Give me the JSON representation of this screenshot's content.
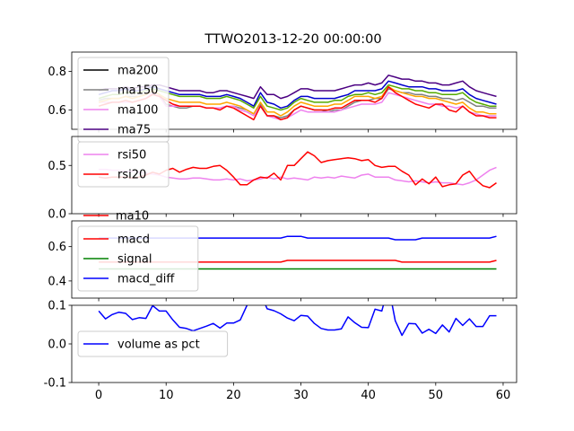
{
  "chart_data": {
    "type": "line",
    "title": "TTWO2013-12-20 00:00:00",
    "x_ticks": [
      0,
      10,
      20,
      30,
      40,
      50,
      60
    ],
    "xlim": [
      -4,
      62
    ],
    "panels": [
      {
        "id": "ma",
        "ylim": [
          0.5,
          0.9
        ],
        "y_ticks": [
          0.6,
          0.8
        ],
        "legend": {
          "placement": "upper-left"
        },
        "series": [
          {
            "name": "ma200",
            "color": "#000000",
            "in_legend": true,
            "values": []
          },
          {
            "name": "ma150",
            "color": "#808080",
            "in_legend": true,
            "values": [
              0.65,
              0.66,
              0.66,
              0.66,
              0.67,
              0.67,
              0.67,
              0.68,
              0.7,
              0.68,
              0.63,
              0.62,
              0.61,
              0.61,
              0.62,
              0.62,
              0.61,
              0.61,
              0.61,
              0.62,
              0.62,
              0.61,
              0.6,
              0.58,
              0.63,
              0.57,
              0.57,
              0.56,
              0.57,
              0.6,
              0.62,
              0.61,
              0.6,
              0.6,
              0.59,
              0.6,
              0.6,
              0.62,
              0.64,
              0.65,
              0.65,
              0.66,
              0.66,
              0.71,
              0.7,
              0.69,
              0.69,
              0.68,
              0.68,
              0.67,
              0.67,
              0.66,
              0.66,
              0.65,
              0.66,
              0.64,
              0.62,
              0.62,
              0.61,
              0.61
            ]
          },
          {
            "name": "ma100",
            "color": "#ee82ee",
            "in_legend": true,
            "values": [
              0.64,
              0.64,
              0.64,
              0.64,
              0.64,
              0.64,
              0.65,
              0.66,
              0.69,
              0.67,
              0.62,
              0.62,
              0.62,
              0.62,
              0.62,
              0.62,
              0.61,
              0.61,
              0.61,
              0.62,
              0.62,
              0.6,
              0.59,
              0.57,
              0.62,
              0.57,
              0.56,
              0.55,
              0.56,
              0.58,
              0.6,
              0.59,
              0.59,
              0.59,
              0.59,
              0.59,
              0.6,
              0.61,
              0.62,
              0.63,
              0.63,
              0.63,
              0.64,
              0.69,
              0.68,
              0.67,
              0.66,
              0.65,
              0.64,
              0.63,
              0.63,
              0.62,
              0.62,
              0.61,
              0.62,
              0.59,
              0.58,
              0.57,
              0.57,
              0.57
            ]
          },
          {
            "name": "ma75",
            "color": "#4b0082",
            "in_legend": true,
            "values": [
              0.7,
              0.71,
              0.71,
              0.71,
              0.72,
              0.71,
              0.72,
              0.72,
              0.73,
              0.73,
              0.72,
              0.71,
              0.7,
              0.7,
              0.7,
              0.7,
              0.69,
              0.69,
              0.7,
              0.7,
              0.69,
              0.68,
              0.67,
              0.66,
              0.72,
              0.68,
              0.68,
              0.66,
              0.67,
              0.69,
              0.71,
              0.71,
              0.7,
              0.7,
              0.7,
              0.7,
              0.71,
              0.72,
              0.73,
              0.73,
              0.74,
              0.73,
              0.74,
              0.78,
              0.77,
              0.76,
              0.76,
              0.75,
              0.75,
              0.74,
              0.74,
              0.73,
              0.73,
              0.74,
              0.75,
              0.72,
              0.7,
              0.69,
              0.68,
              0.67
            ]
          },
          {
            "name": "",
            "color": "#0000cd",
            "in_legend": false,
            "values": [
              0.68,
              0.69,
              0.7,
              0.7,
              0.71,
              0.7,
              0.7,
              0.71,
              0.72,
              0.71,
              0.7,
              0.69,
              0.68,
              0.68,
              0.68,
              0.68,
              0.67,
              0.67,
              0.67,
              0.68,
              0.67,
              0.66,
              0.64,
              0.62,
              0.69,
              0.64,
              0.63,
              0.61,
              0.62,
              0.65,
              0.67,
              0.67,
              0.66,
              0.66,
              0.66,
              0.66,
              0.67,
              0.68,
              0.7,
              0.7,
              0.7,
              0.7,
              0.71,
              0.75,
              0.74,
              0.73,
              0.72,
              0.72,
              0.72,
              0.71,
              0.71,
              0.7,
              0.7,
              0.7,
              0.71,
              0.68,
              0.66,
              0.65,
              0.64,
              0.63
            ]
          },
          {
            "name": "",
            "color": "#55aa00",
            "in_legend": false,
            "values": [
              0.66,
              0.67,
              0.68,
              0.68,
              0.69,
              0.69,
              0.69,
              0.7,
              0.71,
              0.7,
              0.69,
              0.68,
              0.67,
              0.67,
              0.67,
              0.67,
              0.66,
              0.66,
              0.66,
              0.67,
              0.66,
              0.65,
              0.63,
              0.61,
              0.67,
              0.62,
              0.61,
              0.6,
              0.61,
              0.64,
              0.66,
              0.65,
              0.64,
              0.64,
              0.64,
              0.65,
              0.65,
              0.67,
              0.68,
              0.68,
              0.69,
              0.68,
              0.69,
              0.73,
              0.72,
              0.71,
              0.71,
              0.7,
              0.7,
              0.69,
              0.69,
              0.68,
              0.68,
              0.68,
              0.69,
              0.66,
              0.64,
              0.63,
              0.62,
              0.62
            ]
          },
          {
            "name": "",
            "color": "#ffa500",
            "in_legend": false,
            "values": [
              0.64,
              0.65,
              0.66,
              0.66,
              0.67,
              0.66,
              0.67,
              0.68,
              0.7,
              0.68,
              0.66,
              0.65,
              0.64,
              0.64,
              0.64,
              0.64,
              0.63,
              0.63,
              0.63,
              0.64,
              0.63,
              0.62,
              0.6,
              0.58,
              0.64,
              0.59,
              0.59,
              0.57,
              0.59,
              0.62,
              0.64,
              0.63,
              0.62,
              0.62,
              0.62,
              0.63,
              0.63,
              0.65,
              0.67,
              0.67,
              0.67,
              0.66,
              0.67,
              0.72,
              0.7,
              0.69,
              0.68,
              0.67,
              0.67,
              0.66,
              0.66,
              0.65,
              0.64,
              0.63,
              0.64,
              0.61,
              0.59,
              0.59,
              0.58,
              0.58
            ]
          },
          {
            "name": "",
            "color": "#ff0000",
            "in_legend": false,
            "values": [
              0.62,
              0.63,
              0.64,
              0.64,
              0.65,
              0.64,
              0.65,
              0.66,
              0.68,
              0.67,
              0.65,
              0.63,
              0.62,
              0.62,
              0.62,
              0.62,
              0.61,
              0.61,
              0.6,
              0.62,
              0.61,
              0.59,
              0.57,
              0.55,
              0.62,
              0.57,
              0.57,
              0.55,
              0.56,
              0.6,
              0.62,
              0.61,
              0.6,
              0.6,
              0.6,
              0.61,
              0.61,
              0.63,
              0.65,
              0.65,
              0.65,
              0.64,
              0.66,
              0.72,
              0.69,
              0.67,
              0.65,
              0.63,
              0.62,
              0.61,
              0.63,
              0.63,
              0.6,
              0.59,
              0.62,
              0.59,
              0.57,
              0.57,
              0.56,
              0.56
            ]
          }
        ]
      },
      {
        "id": "rsi",
        "ylim": [
          0,
          0.8
        ],
        "y_ticks": [
          0.0,
          0.5
        ],
        "legend": {
          "placement": "upper-left"
        },
        "series": [
          {
            "name": "rsi50",
            "color": "#ee82ee",
            "in_legend": true,
            "values": [
              0.46,
              0.46,
              0.45,
              0.45,
              0.44,
              0.44,
              0.43,
              0.42,
              0.41,
              0.4,
              0.38,
              0.37,
              0.36,
              0.36,
              0.37,
              0.37,
              0.36,
              0.35,
              0.35,
              0.36,
              0.35,
              0.36,
              0.34,
              0.35,
              0.36,
              0.38,
              0.36,
              0.38,
              0.36,
              0.37,
              0.36,
              0.35,
              0.38,
              0.37,
              0.38,
              0.37,
              0.39,
              0.38,
              0.37,
              0.4,
              0.41,
              0.38,
              0.38,
              0.38,
              0.35,
              0.34,
              0.33,
              0.34,
              0.33,
              0.32,
              0.33,
              0.32,
              0.32,
              0.31,
              0.3,
              0.32,
              0.35,
              0.4,
              0.45,
              0.48
            ]
          },
          {
            "name": "rsi20",
            "color": "#ff0000",
            "in_legend": true,
            "values": [
              0.38,
              0.37,
              0.38,
              0.38,
              0.38,
              0.37,
              0.38,
              0.4,
              0.43,
              0.41,
              0.45,
              0.47,
              0.43,
              0.46,
              0.48,
              0.47,
              0.47,
              0.49,
              0.5,
              0.45,
              0.38,
              0.3,
              0.3,
              0.35,
              0.38,
              0.37,
              0.42,
              0.35,
              0.5,
              0.5,
              0.57,
              0.64,
              0.6,
              0.53,
              0.55,
              0.56,
              0.57,
              0.58,
              0.57,
              0.55,
              0.56,
              0.5,
              0.48,
              0.49,
              0.49,
              0.44,
              0.4,
              0.3,
              0.36,
              0.31,
              0.38,
              0.28,
              0.3,
              0.31,
              0.4,
              0.44,
              0.35,
              0.29,
              0.27,
              0.32
            ]
          }
        ]
      },
      {
        "id": "macd",
        "ylim": [
          0.3,
          0.75
        ],
        "y_ticks": [
          0.4,
          0.6
        ],
        "legend": {
          "placement": "upper-left"
        },
        "legend_partial_label": "ma10",
        "series": [
          {
            "name": "macd",
            "color": "#ff0000",
            "in_legend": true,
            "values": [
              0.51,
              0.51,
              0.51,
              0.51,
              0.51,
              0.51,
              0.51,
              0.51,
              0.51,
              0.51,
              0.51,
              0.51,
              0.51,
              0.51,
              0.51,
              0.51,
              0.51,
              0.51,
              0.51,
              0.51,
              0.51,
              0.51,
              0.51,
              0.51,
              0.51,
              0.51,
              0.51,
              0.51,
              0.52,
              0.52,
              0.52,
              0.52,
              0.52,
              0.52,
              0.52,
              0.52,
              0.52,
              0.52,
              0.52,
              0.52,
              0.52,
              0.52,
              0.52,
              0.52,
              0.52,
              0.51,
              0.51,
              0.51,
              0.51,
              0.51,
              0.51,
              0.51,
              0.51,
              0.51,
              0.51,
              0.51,
              0.51,
              0.51,
              0.51,
              0.52
            ]
          },
          {
            "name": "signal",
            "color": "#008000",
            "in_legend": true,
            "values": [
              0.47,
              0.47,
              0.47,
              0.47,
              0.47,
              0.47,
              0.47,
              0.47,
              0.47,
              0.47,
              0.47,
              0.47,
              0.47,
              0.47,
              0.47,
              0.47,
              0.47,
              0.47,
              0.47,
              0.47,
              0.47,
              0.47,
              0.47,
              0.47,
              0.47,
              0.47,
              0.47,
              0.47,
              0.47,
              0.47,
              0.47,
              0.47,
              0.47,
              0.47,
              0.47,
              0.47,
              0.47,
              0.47,
              0.47,
              0.47,
              0.47,
              0.47,
              0.47,
              0.47,
              0.47,
              0.47,
              0.47,
              0.47,
              0.47,
              0.47,
              0.47,
              0.47,
              0.47,
              0.47,
              0.47,
              0.47,
              0.47,
              0.47,
              0.47,
              0.47
            ]
          },
          {
            "name": "macd_diff",
            "color": "#0000ff",
            "in_legend": true,
            "values": [
              0.65,
              0.65,
              0.65,
              0.65,
              0.65,
              0.65,
              0.65,
              0.65,
              0.65,
              0.65,
              0.65,
              0.65,
              0.65,
              0.65,
              0.65,
              0.65,
              0.65,
              0.65,
              0.65,
              0.65,
              0.65,
              0.65,
              0.65,
              0.65,
              0.65,
              0.65,
              0.65,
              0.65,
              0.66,
              0.66,
              0.66,
              0.65,
              0.65,
              0.65,
              0.65,
              0.65,
              0.65,
              0.65,
              0.65,
              0.65,
              0.65,
              0.65,
              0.65,
              0.65,
              0.64,
              0.64,
              0.64,
              0.64,
              0.65,
              0.65,
              0.65,
              0.65,
              0.65,
              0.65,
              0.65,
              0.65,
              0.65,
              0.65,
              0.65,
              0.66
            ]
          }
        ]
      },
      {
        "id": "volume",
        "ylim": [
          -0.1,
          0.1
        ],
        "y_ticks": [
          -0.1,
          0.0,
          0.1
        ],
        "legend": {
          "placement": "center-left"
        },
        "series": [
          {
            "name": "volume as pct",
            "color": "#0000ff",
            "in_legend": true,
            "values": [
              0.085,
              0.065,
              0.076,
              0.082,
              0.079,
              0.063,
              0.068,
              0.066,
              0.099,
              0.085,
              0.085,
              0.062,
              0.043,
              0.04,
              0.034,
              0.04,
              0.046,
              0.053,
              0.041,
              0.054,
              0.054,
              0.062,
              0.1,
              0.15,
              0.13,
              0.091,
              0.086,
              0.078,
              0.067,
              0.06,
              0.074,
              0.072,
              0.053,
              0.04,
              0.036,
              0.036,
              0.039,
              0.07,
              0.055,
              0.043,
              0.042,
              0.09,
              0.085,
              0.15,
              0.06,
              0.022,
              0.053,
              0.052,
              0.028,
              0.038,
              0.027,
              0.049,
              0.031,
              0.066,
              0.048,
              0.065,
              0.045,
              0.045,
              0.073,
              0.073
            ]
          }
        ]
      }
    ]
  }
}
